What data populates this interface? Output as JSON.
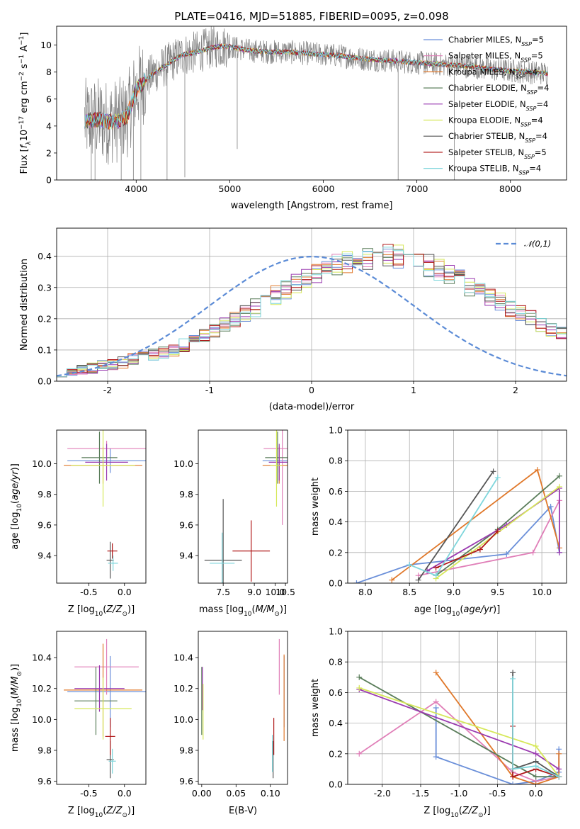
{
  "figure": {
    "title": "PLATE=0416, MJD=51885, FIBERID=0095, z=0.098"
  },
  "colors": {
    "chabrier_miles": "#6a8fd9",
    "salpeter_miles": "#e07fb8",
    "kroupa_miles": "#e0782a",
    "chabrier_elodie": "#5a7d5a",
    "salpeter_elodie": "#9a3ab0",
    "kroupa_elodie": "#d6e85a",
    "chabrier_stelib": "#555555",
    "salpeter_stelib": "#b01818",
    "kroupa_stelib": "#7fd6dc",
    "data": "#808080"
  },
  "chart_data": [
    {
      "id": "spectrum",
      "type": "line",
      "xlabel": "wavelength [Angstrom, rest frame]",
      "ylabel": "Flux [f_λ10^-17 erg cm^-2 s^-1 A^-1]",
      "xlim": [
        3150,
        8600
      ],
      "ylim": [
        0,
        11.4
      ],
      "xticks": [
        4000,
        5000,
        6000,
        7000,
        8000
      ],
      "yticks": [
        0,
        2,
        4,
        6,
        8,
        10
      ],
      "legend_position": "right",
      "continuum": {
        "x": [
          3450,
          3600,
          3700,
          3800,
          3900,
          4000,
          4100,
          4200,
          4300,
          4400,
          4500,
          4600,
          4700,
          4800,
          4900,
          5000,
          5200,
          5400,
          5600,
          5800,
          6000,
          6200,
          6400,
          6600,
          6800,
          7000,
          7200,
          7400,
          7600,
          7800,
          8000,
          8200,
          8400
        ],
        "y": [
          4.4,
          4.5,
          4.3,
          4.4,
          4.7,
          6.7,
          7.4,
          8.0,
          8.4,
          8.9,
          9.3,
          9.4,
          9.6,
          9.8,
          9.9,
          9.9,
          9.6,
          9.5,
          9.5,
          9.4,
          9.3,
          9.2,
          9.0,
          8.9,
          8.8,
          8.7,
          8.6,
          8.5,
          8.4,
          8.2,
          8.1,
          8.0,
          7.9
        ]
      },
      "series": [
        {
          "name": "Chabrier MILES, N_SSP=5",
          "color": "#6a8fd9"
        },
        {
          "name": "Salpeter MILES, N_SSP=5",
          "color": "#e07fb8"
        },
        {
          "name": "Kroupa MILES, N_SSP=4",
          "color": "#e0782a"
        },
        {
          "name": "Chabrier ELODIE, N_SSP=4",
          "color": "#5a7d5a"
        },
        {
          "name": "Salpeter ELODIE, N_SSP=4",
          "color": "#9a3ab0"
        },
        {
          "name": "Kroupa ELODIE, N_SSP=4",
          "color": "#d6e85a"
        },
        {
          "name": "Chabrier STELIB, N_SSP=4",
          "color": "#555555"
        },
        {
          "name": "Salpeter STELIB, N_SSP=5",
          "color": "#b01818"
        },
        {
          "name": "Kroupa STELIB, N_SSP=4",
          "color": "#7fd6dc"
        }
      ],
      "legend_labels": [
        {
          "pre": "Chabrier MILES, N",
          "sub": "SSP",
          "post": "=5"
        },
        {
          "pre": "Salpeter MILES, N",
          "sub": "SSP",
          "post": "=5"
        },
        {
          "pre": "Kroupa MILES, N",
          "sub": "SSP",
          "post": "=4"
        },
        {
          "pre": "Chabrier ELODIE, N",
          "sub": "SSP",
          "post": "=4"
        },
        {
          "pre": "Salpeter ELODIE, N",
          "sub": "SSP",
          "post": "=4"
        },
        {
          "pre": "Kroupa ELODIE, N",
          "sub": "SSP",
          "post": "=4"
        },
        {
          "pre": "Chabrier STELIB, N",
          "sub": "SSP",
          "post": "=4"
        },
        {
          "pre": "Salpeter STELIB, N",
          "sub": "SSP",
          "post": "=5"
        },
        {
          "pre": "Kroupa STELIB, N",
          "sub": "SSP",
          "post": "=4"
        }
      ]
    },
    {
      "id": "residuals",
      "type": "bar",
      "xlabel": "(data-model)/error",
      "ylabel": "Normed distribution",
      "xlim": [
        -2.5,
        2.5
      ],
      "ylim": [
        0,
        0.49
      ],
      "xticks": [
        -2,
        -1,
        0,
        1,
        2
      ],
      "yticks": [
        0.0,
        0.1,
        0.2,
        0.3,
        0.4
      ],
      "grid": true,
      "legend": "𝒩(0,1)",
      "legend_position": "top-right",
      "bin_width": 0.1,
      "bin_start": -2.5,
      "base_values": [
        0.03,
        0.035,
        0.04,
        0.042,
        0.05,
        0.055,
        0.06,
        0.07,
        0.075,
        0.085,
        0.09,
        0.1,
        0.115,
        0.13,
        0.145,
        0.165,
        0.18,
        0.2,
        0.215,
        0.235,
        0.255,
        0.275,
        0.295,
        0.31,
        0.325,
        0.34,
        0.355,
        0.37,
        0.38,
        0.39,
        0.395,
        0.4,
        0.4,
        0.398,
        0.392,
        0.38,
        0.37,
        0.355,
        0.34,
        0.325,
        0.305,
        0.29,
        0.27,
        0.255,
        0.235,
        0.215,
        0.2,
        0.18,
        0.165,
        0.15
      ]
    },
    {
      "id": "z_vs_age",
      "type": "scatter",
      "xlabel": "Z [log10(Z/Z☉)]",
      "ylabel": "age [log10(age/yr)]",
      "xlim": [
        -0.95,
        0.3
      ],
      "ylim": [
        9.22,
        10.22
      ],
      "xticks": [
        -0.5,
        0.0
      ],
      "yticks": [
        9.4,
        9.6,
        9.8,
        10.0
      ],
      "points": [
        {
          "x": -0.2,
          "y": 10.02,
          "xerr": 0.6,
          "yerr": 0.08,
          "color": "#6a8fd9"
        },
        {
          "x": -0.25,
          "y": 10.1,
          "xerr": 0.55,
          "yerr": 0.05,
          "color": "#e07fb8"
        },
        {
          "x": -0.3,
          "y": 9.99,
          "xerr": 0.55,
          "yerr": 0.12,
          "color": "#e0782a"
        },
        {
          "x": -0.35,
          "y": 10.04,
          "xerr": 0.25,
          "yerr": 0.17,
          "color": "#5a7d5a"
        },
        {
          "x": -0.25,
          "y": 10.01,
          "xerr": 0.3,
          "yerr": 0.12,
          "color": "#9a3ab0"
        },
        {
          "x": -0.3,
          "y": 9.99,
          "xerr": 0.45,
          "yerr": 0.27,
          "color": "#d6e85a"
        },
        {
          "x": -0.2,
          "y": 9.37,
          "xerr": 0.05,
          "yerr": 0.12,
          "color": "#555555"
        },
        {
          "x": -0.17,
          "y": 9.43,
          "xerr": 0.07,
          "yerr": 0.05,
          "color": "#b01818"
        },
        {
          "x": -0.16,
          "y": 9.35,
          "xerr": 0.07,
          "yerr": 0.05,
          "color": "#7fd6dc"
        }
      ]
    },
    {
      "id": "mass_vs_age",
      "type": "scatter",
      "xlabel": "mass [log10(M/M☉)]",
      "ylabel": "",
      "xlim": [
        6.3,
        10.6
      ],
      "ylim": [
        9.22,
        10.22
      ],
      "xticks": [
        7.5,
        9.0,
        10.0,
        10.5
      ],
      "xticklabels": [
        "7.5",
        "9.0",
        "10.0",
        "10.5"
      ],
      "yticks": [
        9.4,
        9.6,
        9.8,
        10.0
      ],
      "points": [
        {
          "x": 10.2,
          "y": 10.02,
          "xerr": 0.8,
          "yerr": 0.08,
          "color": "#6a8fd9"
        },
        {
          "x": 10.35,
          "y": 10.1,
          "xerr": 0.9,
          "yerr": 0.5,
          "color": "#e07fb8"
        },
        {
          "x": 10.2,
          "y": 9.99,
          "xerr": 0.8,
          "yerr": 0.12,
          "color": "#e0782a"
        },
        {
          "x": 10.12,
          "y": 10.04,
          "xerr": 0.6,
          "yerr": 0.17,
          "color": "#5a7d5a"
        },
        {
          "x": 10.2,
          "y": 10.01,
          "xerr": 0.5,
          "yerr": 0.12,
          "color": "#9a3ab0"
        },
        {
          "x": 10.07,
          "y": 9.99,
          "xerr": 0.3,
          "yerr": 0.27,
          "color": "#d6e85a"
        },
        {
          "x": 7.5,
          "y": 9.37,
          "xerr": 0.9,
          "yerr": 0.4,
          "color": "#555555"
        },
        {
          "x": 8.85,
          "y": 9.43,
          "xerr": 0.9,
          "yerr": 0.2,
          "color": "#b01818"
        },
        {
          "x": 7.45,
          "y": 9.35,
          "xerr": 0.6,
          "yerr": 0.2,
          "color": "#7fd6dc"
        }
      ]
    },
    {
      "id": "age_mass_weight",
      "type": "line",
      "xlabel": "age [log10(age/yr)]",
      "ylabel": "mass weight",
      "xlim": [
        7.8,
        10.28
      ],
      "ylim": [
        0,
        1
      ],
      "xticks": [
        8.0,
        8.5,
        9.0,
        9.5,
        10.0
      ],
      "yticks": [
        0.0,
        0.2,
        0.4,
        0.6,
        0.8,
        1.0
      ],
      "grid": true,
      "series": [
        {
          "color": "#6a8fd9",
          "x": [
            7.9,
            8.5,
            9.6,
            10.1,
            10.2
          ],
          "y": [
            0.0,
            0.12,
            0.19,
            0.5,
            0.2
          ]
        },
        {
          "color": "#e07fb8",
          "x": [
            8.6,
            9.9,
            10.2
          ],
          "y": [
            0.05,
            0.2,
            0.54
          ]
        },
        {
          "color": "#e0782a",
          "x": [
            8.3,
            9.95,
            10.2
          ],
          "y": [
            0.02,
            0.74,
            0.23
          ]
        },
        {
          "color": "#5a7d5a",
          "x": [
            8.8,
            9.5,
            10.2
          ],
          "y": [
            0.05,
            0.35,
            0.7
          ]
        },
        {
          "color": "#9a3ab0",
          "x": [
            8.7,
            9.6,
            10.2,
            10.2
          ],
          "y": [
            0.08,
            0.38,
            0.62,
            0.2
          ]
        },
        {
          "color": "#d6e85a",
          "x": [
            8.8,
            9.2,
            10.2
          ],
          "y": [
            0.03,
            0.2,
            0.63
          ]
        },
        {
          "color": "#555555",
          "x": [
            8.6,
            9.45
          ],
          "y": [
            0.02,
            0.73
          ]
        },
        {
          "color": "#b01818",
          "x": [
            8.8,
            9.3,
            9.5
          ],
          "y": [
            0.1,
            0.22,
            0.34
          ]
        },
        {
          "color": "#7fd6dc",
          "x": [
            8.5,
            8.8,
            9.5
          ],
          "y": [
            0.12,
            0.05,
            0.69
          ]
        }
      ]
    },
    {
      "id": "z_vs_mass",
      "type": "scatter",
      "xlabel": "Z [log10(Z/Z☉)]",
      "ylabel": "mass [log10(M/M☉)]",
      "xlim": [
        -0.95,
        0.3
      ],
      "ylim": [
        9.58,
        10.57
      ],
      "xticks": [
        -0.5,
        0.0
      ],
      "yticks": [
        9.6,
        9.8,
        10.0,
        10.2,
        10.4
      ],
      "points": [
        {
          "x": -0.2,
          "y": 10.18,
          "xerr": 0.6,
          "yerr": 0.23,
          "color": "#6a8fd9"
        },
        {
          "x": -0.25,
          "y": 10.34,
          "xerr": 0.45,
          "yerr": 0.18,
          "color": "#e07fb8"
        },
        {
          "x": -0.3,
          "y": 10.19,
          "xerr": 0.55,
          "yerr": 0.3,
          "color": "#e0782a"
        },
        {
          "x": -0.4,
          "y": 10.12,
          "xerr": 0.3,
          "yerr": 0.22,
          "color": "#5a7d5a"
        },
        {
          "x": -0.35,
          "y": 10.2,
          "xerr": 0.35,
          "yerr": 0.15,
          "color": "#9a3ab0"
        },
        {
          "x": -0.3,
          "y": 10.07,
          "xerr": 0.4,
          "yerr": 0.2,
          "color": "#d6e85a"
        },
        {
          "x": -0.2,
          "y": 9.74,
          "xerr": 0.05,
          "yerr": 0.12,
          "color": "#555555"
        },
        {
          "x": -0.2,
          "y": 9.89,
          "xerr": 0.07,
          "yerr": 0.12,
          "color": "#b01818"
        },
        {
          "x": -0.17,
          "y": 9.73,
          "xerr": 0.05,
          "yerr": 0.08,
          "color": "#7fd6dc"
        }
      ]
    },
    {
      "id": "ebv_vs_mass",
      "type": "scatter",
      "xlabel": "E(B-V)",
      "ylabel": "",
      "xlim": [
        -0.005,
        0.125
      ],
      "ylim": [
        9.58,
        10.57
      ],
      "xticks": [
        0.0,
        0.05,
        0.1
      ],
      "xticklabels": [
        "0.00",
        "0.05",
        "0.10"
      ],
      "yticks": [
        9.6,
        9.8,
        10.0,
        10.2,
        10.4
      ],
      "points": [
        {
          "x": 0.12,
          "y": 10.18,
          "xerr": 0.0,
          "yerr": 0.23,
          "color": "#6a8fd9"
        },
        {
          "x": 0.113,
          "y": 10.34,
          "xerr": 0.0,
          "yerr": 0.18,
          "color": "#e07fb8"
        },
        {
          "x": 0.12,
          "y": 10.14,
          "xerr": 0.0,
          "yerr": 0.28,
          "color": "#e0782a"
        },
        {
          "x": 0.0,
          "y": 10.12,
          "xerr": 0.0,
          "yerr": 0.22,
          "color": "#5a7d5a"
        },
        {
          "x": 0.001,
          "y": 10.2,
          "xerr": 0.0,
          "yerr": 0.14,
          "color": "#9a3ab0"
        },
        {
          "x": 0.002,
          "y": 10.05,
          "xerr": 0.0,
          "yerr": 0.18,
          "color": "#d6e85a"
        },
        {
          "x": 0.104,
          "y": 9.74,
          "xerr": 0.0,
          "yerr": 0.12,
          "color": "#555555"
        },
        {
          "x": 0.105,
          "y": 9.89,
          "xerr": 0.0,
          "yerr": 0.12,
          "color": "#b01818"
        },
        {
          "x": 0.103,
          "y": 9.78,
          "xerr": 0.0,
          "yerr": 0.12,
          "color": "#7fd6dc"
        }
      ]
    },
    {
      "id": "z_mass_weight",
      "type": "line",
      "xlabel": "Z [log10(Z/Z☉)]",
      "ylabel": "mass weight",
      "xlim": [
        -2.45,
        0.4
      ],
      "ylim": [
        0,
        1
      ],
      "xticks": [
        -2.0,
        -1.5,
        -1.0,
        -0.5,
        0.0
      ],
      "yticks": [
        0.0,
        0.2,
        0.4,
        0.6,
        0.8,
        1.0
      ],
      "grid": true,
      "series": [
        {
          "color": "#6a8fd9",
          "x": [
            -1.3,
            -1.3,
            -0.3,
            0.0,
            0.3,
            0.3
          ],
          "y": [
            0.5,
            0.18,
            0.0,
            0.02,
            0.08,
            0.23
          ]
        },
        {
          "color": "#e07fb8",
          "x": [
            -2.3,
            -1.3,
            -0.3,
            0.0,
            0.3
          ],
          "y": [
            0.2,
            0.54,
            0.08,
            0.02,
            0.05
          ]
        },
        {
          "color": "#e0782a",
          "x": [
            -1.3,
            -0.3,
            0.0,
            0.3,
            0.3
          ],
          "y": [
            0.73,
            0.05,
            0.0,
            0.05,
            0.2
          ]
        },
        {
          "color": "#5a7d5a",
          "x": [
            -2.3,
            0.0,
            0.3
          ],
          "y": [
            0.7,
            0.05,
            0.05
          ]
        },
        {
          "color": "#9a3ab0",
          "x": [
            -2.3,
            0.0,
            0.3
          ],
          "y": [
            0.62,
            0.2,
            0.1
          ]
        },
        {
          "color": "#d6e85a",
          "x": [
            -2.3,
            0.0,
            0.3
          ],
          "y": [
            0.63,
            0.25,
            0.05
          ]
        },
        {
          "color": "#555555",
          "x": [
            -0.3,
            -0.3,
            -0.3,
            0.0,
            0.3
          ],
          "y": [
            0.73,
            0.05,
            0.1,
            0.15,
            0.05
          ]
        },
        {
          "color": "#b01818",
          "x": [
            -0.3,
            -0.3,
            0.0,
            0.3
          ],
          "y": [
            0.38,
            0.05,
            0.1,
            0.05
          ]
        },
        {
          "color": "#7fd6dc",
          "x": [
            -0.3,
            -0.3,
            0.0,
            0.3
          ],
          "y": [
            0.69,
            0.1,
            0.12,
            0.05
          ]
        }
      ]
    }
  ]
}
